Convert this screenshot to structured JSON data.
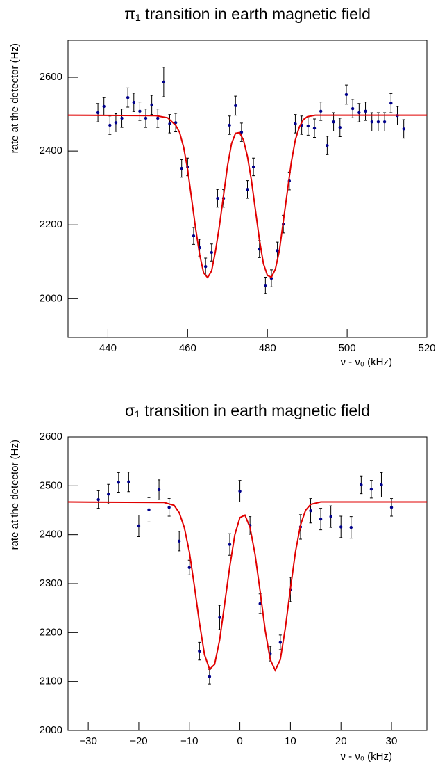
{
  "chart_data": [
    {
      "type": "scatter",
      "title": "π₁ transition in earth magnetic field",
      "x_label": "ν - ν₀ (kHz)",
      "y_label": "rate at the detector (Hz)",
      "xlim": [
        430,
        520
      ],
      "ylim": [
        1895,
        2700
      ],
      "xticks": [
        440,
        460,
        480,
        500,
        520
      ],
      "yticks": [
        2000,
        2200,
        2400,
        2600
      ],
      "series": [
        {
          "color": "#00008b",
          "style": "points",
          "x": [
            437.5,
            439,
            440.5,
            442,
            443.5,
            445,
            446.5,
            448,
            449.5,
            451,
            452.5,
            454,
            455.5,
            457,
            458.5,
            460,
            461.5,
            463,
            464.5,
            466,
            467.5,
            469,
            470.5,
            472,
            473.5,
            475,
            476.5,
            478,
            479.5,
            481,
            482.5,
            484,
            485.5,
            487,
            488.6,
            490.2,
            491.8,
            493.4,
            495,
            496.6,
            498.2,
            499.8,
            501.4,
            503,
            504.6,
            506.2,
            507.8,
            509.4,
            511,
            512.6,
            514.2
          ],
          "values": [
            2504,
            2521,
            2470,
            2477,
            2489,
            2545,
            2532,
            2508,
            2489,
            2525,
            2489,
            2587,
            2474,
            2477,
            2353,
            2357,
            2170,
            2138,
            2087,
            2125,
            2272,
            2272,
            2470,
            2523,
            2451,
            2296,
            2357,
            2134,
            2036,
            2055,
            2130,
            2202,
            2319,
            2474,
            2470,
            2468,
            2462,
            2508,
            2415,
            2479,
            2464,
            2553,
            2515,
            2504,
            2508,
            2479,
            2479,
            2479,
            2530,
            2496,
            2460
          ],
          "errors": [
            25,
            24,
            25,
            24,
            25,
            26,
            25,
            25,
            25,
            26,
            25,
            40,
            25,
            25,
            24,
            24,
            23,
            23,
            23,
            23,
            24,
            24,
            25,
            26,
            25,
            24,
            24,
            23,
            22,
            23,
            23,
            24,
            24,
            25,
            25,
            25,
            25,
            25,
            25,
            25,
            25,
            26,
            25,
            25,
            25,
            25,
            25,
            25,
            26,
            25,
            25
          ]
        },
        {
          "color": "#e00000",
          "style": "line",
          "x": [
            430,
            452,
            455,
            457,
            458,
            459,
            460,
            461,
            462,
            463,
            464,
            465,
            466,
            467,
            468,
            469,
            470,
            471,
            472,
            473,
            474,
            475,
            476,
            477,
            478,
            479,
            480,
            481,
            482,
            483,
            484,
            485,
            486,
            487,
            488,
            489,
            490,
            492,
            520
          ],
          "values": [
            2497,
            2496,
            2490,
            2470,
            2450,
            2410,
            2350,
            2270,
            2190,
            2120,
            2070,
            2057,
            2075,
            2130,
            2200,
            2280,
            2360,
            2420,
            2448,
            2450,
            2430,
            2385,
            2320,
            2240,
            2160,
            2095,
            2063,
            2058,
            2080,
            2130,
            2210,
            2290,
            2370,
            2430,
            2465,
            2485,
            2493,
            2497,
            2497
          ]
        }
      ]
    },
    {
      "type": "scatter",
      "title": "σ₁ transition in earth magnetic field",
      "x_label": "ν - ν₀ (kHz)",
      "y_label": "rate at the detector (Hz)",
      "xlim": [
        -34,
        37
      ],
      "ylim": [
        2000,
        2600
      ],
      "xticks": [
        {
          "value": -30,
          "label": "−30"
        },
        {
          "value": -20,
          "label": "−20"
        },
        {
          "value": -10,
          "label": "−10"
        },
        0,
        10,
        20,
        30
      ],
      "yticks": [
        2000,
        2100,
        2200,
        2300,
        2400,
        2500,
        2600
      ],
      "series": [
        {
          "color": "#00008b",
          "style": "points",
          "x": [
            -28,
            -26,
            -24,
            -22,
            -20,
            -18,
            -16,
            -14,
            -12,
            -10,
            -8,
            -6,
            -4,
            -2,
            0,
            2,
            4,
            6,
            8,
            10,
            12,
            14,
            16,
            18,
            20,
            22,
            24,
            26,
            28,
            30
          ],
          "values": [
            2472,
            2483,
            2507,
            2508,
            2418,
            2451,
            2492,
            2456,
            2387,
            2333,
            2162,
            2110,
            2231,
            2380,
            2489,
            2419,
            2259,
            2157,
            2180,
            2288,
            2416,
            2449,
            2432,
            2437,
            2416,
            2415,
            2502,
            2493,
            2502,
            2456
          ],
          "errors": [
            18,
            20,
            20,
            20,
            22,
            25,
            20,
            18,
            20,
            15,
            18,
            15,
            25,
            22,
            22,
            18,
            20,
            15,
            15,
            25,
            25,
            25,
            22,
            22,
            22,
            22,
            18,
            18,
            25,
            18
          ]
        },
        {
          "color": "#e00000",
          "style": "line",
          "x": [
            -34,
            -15,
            -13,
            -12,
            -11,
            -10,
            -9,
            -8,
            -7,
            -6,
            -5,
            -4,
            -3,
            -2,
            -1,
            0,
            1,
            2,
            3,
            4,
            5,
            6,
            7,
            8,
            9,
            10,
            11,
            12,
            13,
            14,
            16,
            37
          ],
          "values": [
            2467,
            2466,
            2460,
            2445,
            2415,
            2365,
            2295,
            2220,
            2155,
            2125,
            2135,
            2185,
            2260,
            2335,
            2400,
            2435,
            2440,
            2415,
            2360,
            2285,
            2205,
            2145,
            2123,
            2145,
            2210,
            2290,
            2365,
            2420,
            2450,
            2462,
            2467,
            2467
          ]
        }
      ]
    }
  ]
}
